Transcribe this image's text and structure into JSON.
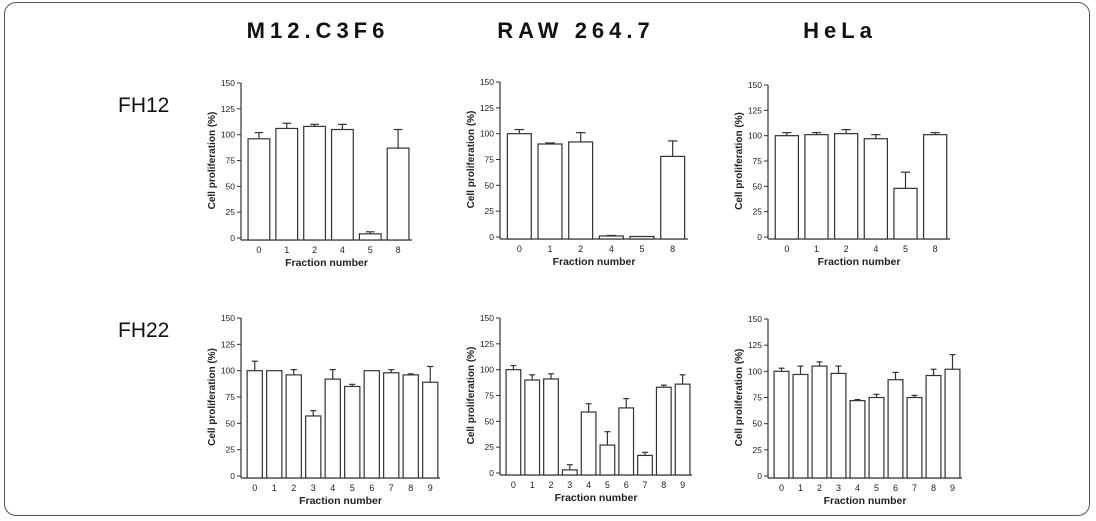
{
  "column_headers": [
    "M12.C3F6",
    "RAW 264.7",
    "HeLa"
  ],
  "row_headers": [
    "FH12",
    "FH22"
  ],
  "chart_data": [
    {
      "type": "bar",
      "row": "FH12",
      "column": "M12.C3F6",
      "xlabel": "Fraction number",
      "ylabel": "Cell proliferation (%)",
      "ylim": [
        0,
        150
      ],
      "yticks": [
        0,
        25,
        50,
        75,
        100,
        125,
        150
      ],
      "categories": [
        "0",
        "1",
        "2",
        "4",
        "5",
        "8"
      ],
      "values": [
        96,
        106,
        108,
        105,
        4,
        87
      ],
      "error": [
        6,
        5,
        2,
        5,
        2,
        18
      ]
    },
    {
      "type": "bar",
      "row": "FH12",
      "column": "RAW 264.7",
      "xlabel": "Fraction number",
      "ylabel": "Cell proliferation (%)",
      "ylim": [
        0,
        150
      ],
      "yticks": [
        0,
        25,
        50,
        75,
        100,
        125,
        150
      ],
      "categories": [
        "0",
        "1",
        "2",
        "4",
        "5",
        "8"
      ],
      "values": [
        100,
        90,
        92,
        1,
        0.5,
        78
      ],
      "error": [
        4,
        1,
        9,
        0.5,
        0,
        15
      ]
    },
    {
      "type": "bar",
      "row": "FH12",
      "column": "HeLa",
      "xlabel": "Fraction number",
      "ylabel": "Cell proliferation (%)",
      "ylim": [
        0,
        150
      ],
      "yticks": [
        0,
        25,
        50,
        75,
        100,
        125,
        150
      ],
      "categories": [
        "0",
        "1",
        "2",
        "4",
        "5",
        "8"
      ],
      "values": [
        100,
        101,
        102,
        97,
        48,
        101
      ],
      "error": [
        3,
        2,
        4,
        4,
        16,
        2
      ]
    },
    {
      "type": "bar",
      "row": "FH22",
      "column": "M12.C3F6",
      "xlabel": "Fraction number",
      "ylabel": "Cell proliferation (%)",
      "ylim": [
        0,
        150
      ],
      "yticks": [
        0,
        25,
        50,
        75,
        100,
        125,
        150
      ],
      "categories": [
        "0",
        "1",
        "2",
        "3",
        "4",
        "5",
        "6",
        "7",
        "8",
        "9"
      ],
      "values": [
        100,
        100,
        96,
        57,
        92,
        85,
        100,
        98,
        96,
        89
      ],
      "error": [
        9,
        0,
        5,
        5,
        9,
        2,
        0,
        3,
        1,
        15
      ]
    },
    {
      "type": "bar",
      "row": "FH22",
      "column": "RAW 264.7",
      "xlabel": "Fraction number",
      "ylabel": "Cell proliferation (%)",
      "ylim": [
        0,
        150
      ],
      "yticks": [
        0,
        25,
        50,
        75,
        100,
        125,
        150
      ],
      "categories": [
        "0",
        "1",
        "2",
        "3",
        "4",
        "5",
        "6",
        "7",
        "8",
        "9"
      ],
      "values": [
        100,
        90,
        91,
        3,
        59,
        27,
        63,
        17,
        83,
        86
      ],
      "error": [
        4,
        5,
        5,
        5,
        8,
        13,
        9,
        3,
        2,
        9
      ]
    },
    {
      "type": "bar",
      "row": "FH22",
      "column": "HeLa",
      "xlabel": "Fraction number",
      "ylabel": "Cell proliferation (%)",
      "ylim": [
        0,
        150
      ],
      "yticks": [
        0,
        25,
        50,
        75,
        100,
        125,
        150
      ],
      "categories": [
        "0",
        "1",
        "2",
        "3",
        "4",
        "5",
        "6",
        "7",
        "8",
        "9"
      ],
      "values": [
        100,
        97,
        105,
        98,
        72,
        75,
        92,
        75,
        96,
        102
      ],
      "error": [
        3,
        8,
        4,
        7,
        1,
        3,
        7,
        2,
        6,
        14
      ]
    }
  ]
}
